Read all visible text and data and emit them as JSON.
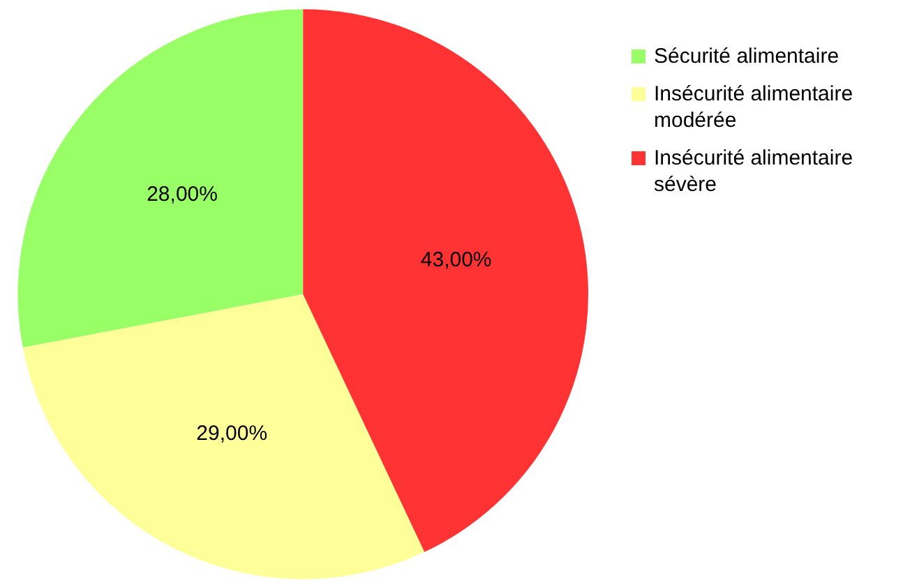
{
  "chart_data": {
    "type": "pie",
    "categories": [
      "Sécurité alimentaire",
      "Insécurité alimentaire modérée",
      "Insécurité alimentaire sévère"
    ],
    "values": [
      28,
      29,
      43
    ],
    "colors": [
      "#99ff66",
      "#ffff99",
      "#ff3333"
    ],
    "value_labels": [
      "28,00%",
      "29,00%",
      "43,00%"
    ],
    "legend": "top right"
  }
}
